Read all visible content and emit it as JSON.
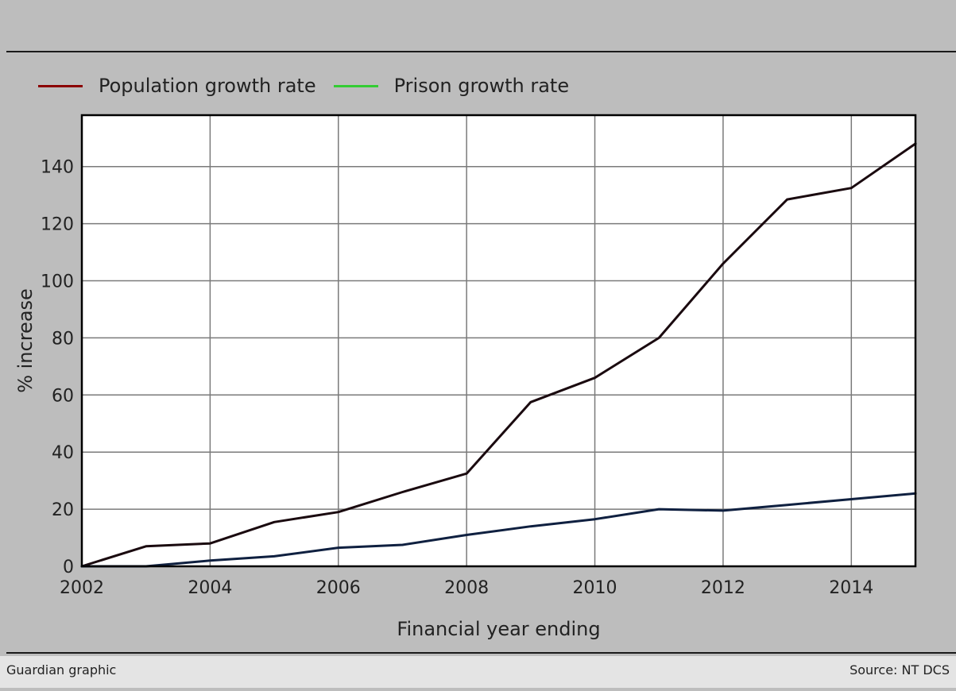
{
  "chart_data": {
    "type": "line",
    "x": [
      2002,
      2003,
      2004,
      2005,
      2006,
      2007,
      2008,
      2009,
      2010,
      2011,
      2012,
      2013,
      2014,
      2015
    ],
    "series": [
      {
        "name": "Population growth rate",
        "color": "#1a0a0f",
        "legend_color": "#8b0000",
        "values": [
          0,
          7,
          8,
          15.5,
          19,
          26,
          32.5,
          57.5,
          66,
          80,
          106,
          128.5,
          132.5,
          148
        ]
      },
      {
        "name": "Prison growth rate",
        "color": "#0f2040",
        "legend_color": "#33cc33",
        "values": [
          0,
          0,
          2,
          3.5,
          6.5,
          7.5,
          11,
          14,
          16.5,
          20,
          19.5,
          21.5,
          23.5,
          25.5
        ]
      }
    ],
    "xlabel": "Financial year ending",
    "ylabel": "% increase",
    "x_ticks": [
      2002,
      2004,
      2006,
      2008,
      2010,
      2012,
      2014
    ],
    "y_ticks": [
      0,
      20,
      40,
      60,
      80,
      100,
      120,
      140
    ],
    "xlim": [
      2002,
      2015
    ],
    "ylim": [
      0,
      158
    ],
    "grid": true,
    "legend_position": "top-left"
  },
  "footer": {
    "credit": "Guardian graphic",
    "source": "Source: NT DCS"
  }
}
